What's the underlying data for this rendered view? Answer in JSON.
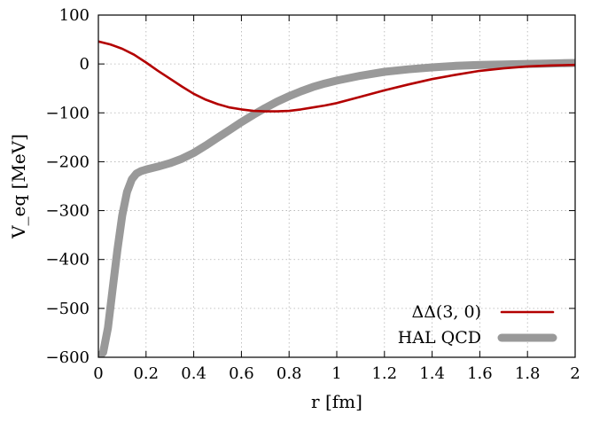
{
  "chart_data": {
    "type": "line",
    "xlabel": "r [fm]",
    "ylabel": "V_eq [MeV]",
    "xlim": [
      0,
      2
    ],
    "ylim": [
      -600,
      100
    ],
    "x_ticks": [
      0,
      0.2,
      0.4,
      0.6,
      0.8,
      1,
      1.2,
      1.4,
      1.6,
      1.8,
      2
    ],
    "x_tick_labels": [
      "0",
      "0.2",
      "0.4",
      "0.6",
      "0.8",
      "1",
      "1.2",
      "1.4",
      "1.6",
      "1.8",
      "2"
    ],
    "y_ticks": [
      100,
      0,
      -100,
      -200,
      -300,
      -400,
      -500,
      -600
    ],
    "y_tick_labels": [
      "100",
      "0",
      "−100",
      "−200",
      "−300",
      "−400",
      "−500",
      "−600"
    ],
    "grid": true,
    "legend_position": "bottom-right",
    "series": [
      {
        "name": "ΔΔ(3, 0)",
        "color": "#b30000",
        "x": [
          0,
          0.05,
          0.1,
          0.15,
          0.2,
          0.25,
          0.3,
          0.35,
          0.4,
          0.45,
          0.5,
          0.55,
          0.6,
          0.65,
          0.7,
          0.75,
          0.8,
          0.85,
          0.9,
          0.95,
          1.0,
          1.1,
          1.2,
          1.3,
          1.4,
          1.5,
          1.6,
          1.7,
          1.8,
          1.9,
          2.0
        ],
        "y": [
          46,
          40,
          31,
          19,
          3,
          -14,
          -30,
          -46,
          -61,
          -73,
          -82,
          -89,
          -93,
          -96,
          -97,
          -97,
          -96,
          -93,
          -89,
          -85,
          -80,
          -67,
          -54,
          -42,
          -31,
          -22,
          -14,
          -9,
          -5,
          -3,
          -2
        ]
      },
      {
        "name": "HAL QCD",
        "color": "#999999",
        "x": [
          0,
          0.02,
          0.04,
          0.06,
          0.08,
          0.1,
          0.12,
          0.14,
          0.16,
          0.18,
          0.2,
          0.25,
          0.3,
          0.35,
          0.4,
          0.45,
          0.5,
          0.55,
          0.6,
          0.65,
          0.7,
          0.75,
          0.8,
          0.85,
          0.9,
          0.95,
          1.0,
          1.1,
          1.2,
          1.3,
          1.4,
          1.5,
          1.6,
          1.7,
          1.8,
          1.9,
          2.0
        ],
        "y": [
          -600,
          -590,
          -540,
          -460,
          -380,
          -310,
          -262,
          -236,
          -224,
          -219,
          -216,
          -210,
          -203,
          -194,
          -182,
          -167,
          -151,
          -135,
          -119,
          -104,
          -90,
          -77,
          -66,
          -56,
          -47,
          -40,
          -34,
          -24,
          -16,
          -11,
          -7,
          -4,
          -2,
          -1,
          0,
          1,
          2
        ]
      }
    ]
  }
}
